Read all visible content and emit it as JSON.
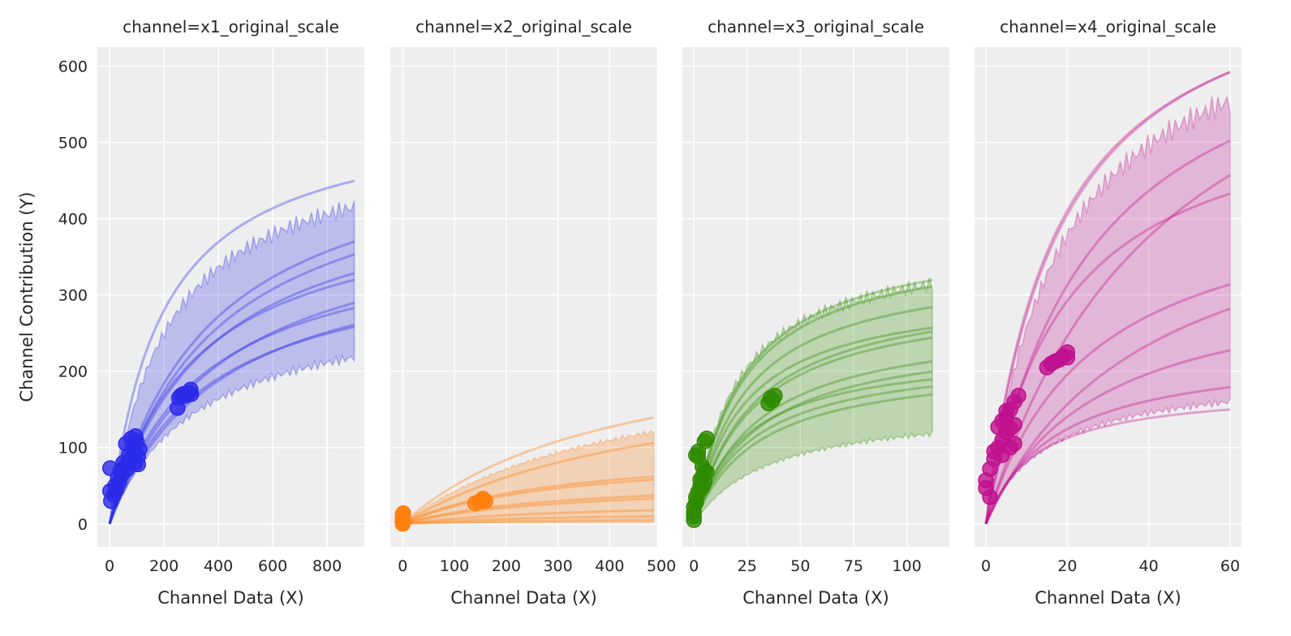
{
  "chart_data": {
    "type": "line",
    "ylabel": "Channel Contribution (Y)",
    "ylim": [
      -30,
      625
    ],
    "yticks": [
      0,
      100,
      200,
      300,
      400,
      500,
      600
    ],
    "grid": true,
    "model_note_form": "y = vmax * x / (K + x)",
    "panels": [
      {
        "title": "channel=x1_original_scale",
        "xlabel": "Channel Data (X)",
        "color": "#2a2ae8",
        "xlim": [
          -45,
          937
        ],
        "xmax": 900,
        "xticks": [
          0,
          200,
          400,
          600,
          800
        ],
        "band": {
          "lower": {
            "vmax": 297,
            "K": 325
          },
          "upper": {
            "vmax": 512,
            "K": 210
          }
        },
        "curves": [
          {
            "vmax": 544,
            "K": 189
          },
          {
            "vmax": 520,
            "K": 365
          },
          {
            "vmax": 500,
            "K": 375
          },
          {
            "vmax": 460,
            "K": 360
          },
          {
            "vmax": 430,
            "K": 310
          },
          {
            "vmax": 420,
            "K": 405
          },
          {
            "vmax": 390,
            "K": 340
          },
          {
            "vmax": 380,
            "K": 410
          },
          {
            "vmax": 360,
            "K": 355
          }
        ],
        "points": [
          [
            2,
            73
          ],
          [
            2,
            43
          ],
          [
            5,
            30
          ],
          [
            15,
            38
          ],
          [
            20,
            50
          ],
          [
            25,
            45
          ],
          [
            30,
            60
          ],
          [
            35,
            55
          ],
          [
            40,
            70
          ],
          [
            45,
            65
          ],
          [
            50,
            80
          ],
          [
            55,
            75
          ],
          [
            60,
            105
          ],
          [
            65,
            72
          ],
          [
            70,
            90
          ],
          [
            75,
            85
          ],
          [
            80,
            112
          ],
          [
            85,
            100
          ],
          [
            90,
            95
          ],
          [
            95,
            115
          ],
          [
            100,
            108
          ],
          [
            105,
            88
          ],
          [
            110,
            98
          ],
          [
            105,
            78
          ],
          [
            95,
            80
          ],
          [
            250,
            152
          ],
          [
            255,
            165
          ],
          [
            262,
            168
          ],
          [
            270,
            170
          ],
          [
            280,
            168
          ],
          [
            290,
            172
          ],
          [
            298,
            176
          ],
          [
            300,
            170
          ]
        ]
      },
      {
        "title": "channel=x2_original_scale",
        "xlabel": "Channel Data (X)",
        "color": "#ff7f0e",
        "xlim": [
          -24,
          492
        ],
        "xmax": 485,
        "xticks": [
          0,
          100,
          200,
          300,
          400,
          500
        ],
        "band": {
          "lower": {
            "vmax": 2,
            "K": 50
          },
          "upper": {
            "vmax": 230,
            "K": 440
          }
        },
        "curves": [
          {
            "vmax": 260,
            "K": 420
          },
          {
            "vmax": 220,
            "K": 520
          },
          {
            "vmax": 100,
            "K": 300
          },
          {
            "vmax": 95,
            "K": 310
          },
          {
            "vmax": 60,
            "K": 300
          },
          {
            "vmax": 55,
            "K": 320
          },
          {
            "vmax": 30,
            "K": 330
          },
          {
            "vmax": 16,
            "K": 300
          },
          {
            "vmax": 8,
            "K": 300
          }
        ],
        "points": [
          [
            0,
            0
          ],
          [
            0,
            3
          ],
          [
            0,
            6
          ],
          [
            0,
            9
          ],
          [
            0,
            12
          ],
          [
            1,
            14
          ],
          [
            0,
            2
          ],
          [
            0,
            5
          ],
          [
            140,
            27
          ],
          [
            148,
            29
          ],
          [
            155,
            33
          ],
          [
            160,
            30
          ],
          [
            152,
            31
          ]
        ]
      },
      {
        "title": "channel=x3_original_scale",
        "xlabel": "Channel Data (X)",
        "color": "#2e8b00",
        "xlim": [
          -5.4,
          120
        ],
        "xmax": 112,
        "xticks": [
          0,
          25,
          50,
          75,
          100
        ],
        "band": {
          "lower": {
            "vmax": 155,
            "K": 35
          },
          "upper": {
            "vmax": 370,
            "K": 20
          }
        },
        "curves": [
          {
            "vmax": 385,
            "K": 23
          },
          {
            "vmax": 375,
            "K": 23
          },
          {
            "vmax": 345,
            "K": 24
          },
          {
            "vmax": 310,
            "K": 23
          },
          {
            "vmax": 315,
            "K": 28
          },
          {
            "vmax": 305,
            "K": 28
          },
          {
            "vmax": 270,
            "K": 30
          },
          {
            "vmax": 255,
            "K": 31
          },
          {
            "vmax": 230,
            "K": 24
          },
          {
            "vmax": 225,
            "K": 28
          },
          {
            "vmax": 215,
            "K": 30
          }
        ],
        "points": [
          [
            0,
            5
          ],
          [
            0,
            10
          ],
          [
            0,
            15
          ],
          [
            0,
            22
          ],
          [
            1,
            28
          ],
          [
            1,
            35
          ],
          [
            1,
            90
          ],
          [
            2,
            95
          ],
          [
            2,
            88
          ],
          [
            2,
            42
          ],
          [
            3,
            50
          ],
          [
            3,
            58
          ],
          [
            4,
            48
          ],
          [
            4,
            62
          ],
          [
            4,
            75
          ],
          [
            5,
            70
          ],
          [
            5,
            55
          ],
          [
            5,
            108
          ],
          [
            6,
            112
          ],
          [
            6,
            68
          ],
          [
            35,
            158
          ],
          [
            36,
            165
          ],
          [
            37,
            162
          ],
          [
            38,
            168
          ]
        ]
      },
      {
        "title": "channel=x4_original_scale",
        "xlabel": "Channel Data (X)",
        "color": "#c0108f",
        "xlim": [
          -2.8,
          62.8
        ],
        "xmax": 60,
        "xticks": [
          0,
          20,
          40,
          60
        ],
        "band": {
          "lower": {
            "vmax": 200,
            "K": 15
          },
          "upper": {
            "vmax": 720,
            "K": 18
          }
        },
        "curves": [
          {
            "vmax": 770,
            "K": 18
          },
          {
            "vmax": 760,
            "K": 17
          },
          {
            "vmax": 720,
            "K": 26
          },
          {
            "vmax": 800,
            "K": 45
          },
          {
            "vmax": 570,
            "K": 19
          },
          {
            "vmax": 450,
            "K": 26
          },
          {
            "vmax": 470,
            "K": 40
          },
          {
            "vmax": 330,
            "K": 27
          },
          {
            "vmax": 230,
            "K": 17
          },
          {
            "vmax": 180,
            "K": 12
          }
        ],
        "points": [
          [
            0,
            57
          ],
          [
            0,
            47
          ],
          [
            1,
            35
          ],
          [
            1,
            72
          ],
          [
            2,
            85
          ],
          [
            2,
            95
          ],
          [
            3,
            100
          ],
          [
            3,
            127
          ],
          [
            4,
            135
          ],
          [
            4,
            110
          ],
          [
            4,
            90
          ],
          [
            5,
            148
          ],
          [
            5,
            120
          ],
          [
            5,
            140
          ],
          [
            6,
            150
          ],
          [
            6,
            125
          ],
          [
            6,
            100
          ],
          [
            7,
            160
          ],
          [
            7,
            130
          ],
          [
            7,
            105
          ],
          [
            8,
            168
          ],
          [
            15,
            205
          ],
          [
            16,
            210
          ],
          [
            17,
            213
          ],
          [
            18,
            215
          ],
          [
            19,
            220
          ],
          [
            20,
            225
          ],
          [
            20,
            218
          ]
        ]
      }
    ]
  }
}
